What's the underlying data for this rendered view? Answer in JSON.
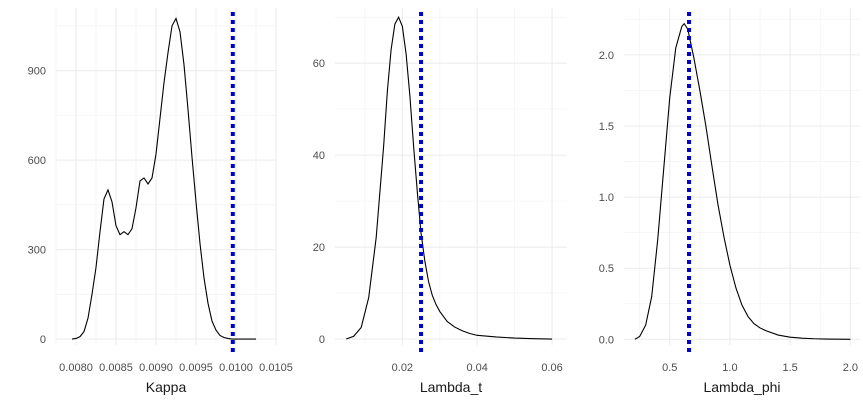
{
  "chart_data": [
    {
      "type": "line",
      "subtype": "density",
      "xlabel": "Kappa",
      "ylabel": "",
      "xlim": [
        0.00775,
        0.0105
      ],
      "ylim": [
        -20,
        1110
      ],
      "x_ticks": [
        0.008,
        0.0085,
        0.009,
        0.0095,
        0.01,
        0.0105
      ],
      "x_tick_labels": [
        "0.0080",
        "0.0085",
        "0.0090",
        "0.0095",
        "0.0100",
        "0.0105"
      ],
      "y_ticks": [
        0,
        300,
        600,
        900
      ],
      "y_tick_labels": [
        "0",
        "300",
        "600",
        "900"
      ],
      "reference_line": {
        "x": 0.00996,
        "style": "dotted",
        "color": "#0000cd"
      },
      "series": [
        {
          "x": [
            0.00795,
            0.008,
            0.00805,
            0.0081,
            0.00815,
            0.0082,
            0.00825,
            0.0083,
            0.00835,
            0.0084,
            0.00845,
            0.0085,
            0.00855,
            0.0086,
            0.00865,
            0.0087,
            0.00875,
            0.0088,
            0.00885,
            0.0089,
            0.00895,
            0.009,
            0.00905,
            0.0091,
            0.00915,
            0.0092,
            0.00925,
            0.0093,
            0.00935,
            0.0094,
            0.00945,
            0.0095,
            0.00955,
            0.0096,
            0.00965,
            0.0097,
            0.00975,
            0.0098,
            0.00985,
            0.0099,
            0.00995,
            0.01,
            0.01005,
            0.0101,
            0.01015,
            0.0102,
            0.01025
          ],
          "y": [
            0,
            2,
            8,
            25,
            70,
            150,
            240,
            360,
            470,
            500,
            460,
            380,
            350,
            360,
            350,
            370,
            440,
            530,
            540,
            520,
            540,
            620,
            740,
            860,
            960,
            1050,
            1075,
            1030,
            920,
            770,
            610,
            460,
            320,
            205,
            120,
            60,
            30,
            12,
            5,
            2,
            0,
            0,
            0,
            0,
            0,
            0,
            0
          ]
        }
      ]
    },
    {
      "type": "line",
      "subtype": "density",
      "xlabel": "Lambda_t",
      "ylabel": "",
      "xlim": [
        0.002,
        0.064
      ],
      "ylim": [
        -1.3,
        72
      ],
      "x_ticks": [
        0.02,
        0.04,
        0.06
      ],
      "x_tick_labels": [
        "0.02",
        "0.04",
        "0.06"
      ],
      "y_ticks": [
        0,
        20,
        40,
        60
      ],
      "y_tick_labels": [
        "0",
        "20",
        "40",
        "60"
      ],
      "reference_line": {
        "x": 0.025,
        "style": "dotted",
        "color": "#0000cd"
      },
      "series": [
        {
          "x": [
            0.005,
            0.007,
            0.009,
            0.011,
            0.013,
            0.015,
            0.016,
            0.017,
            0.018,
            0.019,
            0.02,
            0.021,
            0.022,
            0.023,
            0.024,
            0.025,
            0.026,
            0.027,
            0.028,
            0.029,
            0.03,
            0.032,
            0.034,
            0.036,
            0.038,
            0.04,
            0.045,
            0.05,
            0.055,
            0.06
          ],
          "y": [
            0,
            0.6,
            2.5,
            9,
            22,
            42,
            54,
            63,
            68.5,
            70,
            68,
            62,
            53,
            42,
            32,
            23,
            17,
            12.5,
            9.5,
            7.5,
            6,
            3.8,
            2.6,
            1.8,
            1.2,
            0.8,
            0.45,
            0.2,
            0.08,
            0
          ]
        }
      ]
    },
    {
      "type": "line",
      "subtype": "density",
      "xlabel": "Lambda_phi",
      "ylabel": "",
      "xlim": [
        0.12,
        2.08
      ],
      "ylim": [
        -0.04,
        2.33
      ],
      "x_ticks": [
        0.5,
        1.0,
        1.5,
        2.0
      ],
      "x_tick_labels": [
        "0.5",
        "1.0",
        "1.5",
        "2.0"
      ],
      "y_ticks": [
        0,
        0.5,
        1.0,
        1.5,
        2.0
      ],
      "y_tick_labels": [
        "0.0",
        "0.5",
        "1.0",
        "1.5",
        "2.0"
      ],
      "reference_line": {
        "x": 0.66,
        "style": "dotted",
        "color": "#0000cd"
      },
      "series": [
        {
          "x": [
            0.21,
            0.25,
            0.3,
            0.35,
            0.4,
            0.45,
            0.5,
            0.55,
            0.6,
            0.62,
            0.65,
            0.7,
            0.75,
            0.8,
            0.85,
            0.9,
            0.95,
            1.0,
            1.05,
            1.1,
            1.15,
            1.2,
            1.25,
            1.3,
            1.4,
            1.5,
            1.6,
            1.7,
            1.8,
            1.9,
            2.0
          ],
          "y": [
            0,
            0.02,
            0.1,
            0.3,
            0.7,
            1.2,
            1.7,
            2.05,
            2.2,
            2.22,
            2.18,
            1.98,
            1.75,
            1.5,
            1.22,
            0.95,
            0.72,
            0.52,
            0.36,
            0.24,
            0.16,
            0.11,
            0.08,
            0.06,
            0.03,
            0.015,
            0.008,
            0.004,
            0.002,
            0.001,
            0
          ]
        }
      ]
    }
  ]
}
